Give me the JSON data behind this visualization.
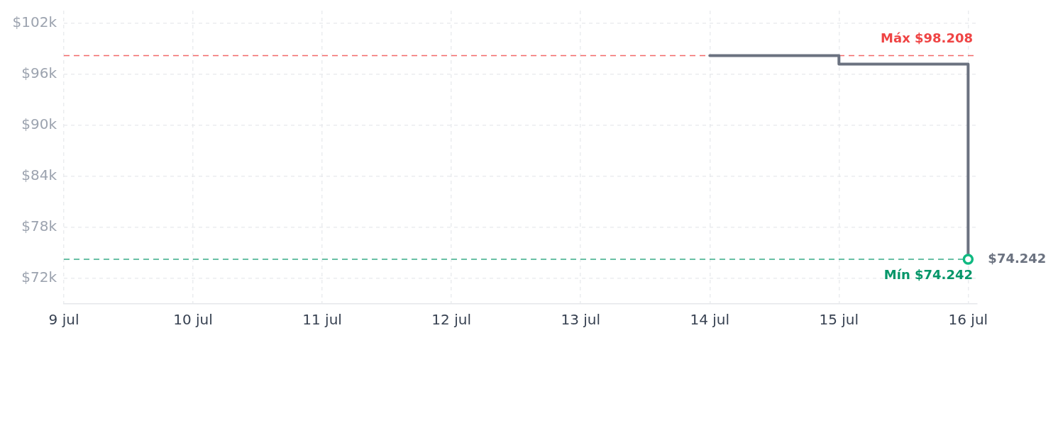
{
  "chart_data": {
    "type": "step",
    "x": [
      "--07-14",
      "--07-15",
      "--07-16"
    ],
    "series": [
      {
        "color": "#6b7280",
        "values": [
          98208,
          97200,
          74242
        ]
      },
      {
        "type": "scatter",
        "x": [
          "--07-16"
        ],
        "color": "#10b981",
        "marker": "circle",
        "values": [
          74242
        ]
      }
    ],
    "xlim": [
      "--07-09",
      "--07-16T01:40"
    ],
    "xticks": [
      {
        "value": "--07-09",
        "label": "9 jul"
      },
      {
        "value": "--07-10",
        "label": "10 jul"
      },
      {
        "value": "--07-11",
        "label": "11 jul"
      },
      {
        "value": "--07-12",
        "label": "12 jul"
      },
      {
        "value": "--07-13",
        "label": "13 jul"
      },
      {
        "value": "--07-14",
        "label": "14 jul"
      },
      {
        "value": "--07-15",
        "label": "15 jul"
      },
      {
        "value": "--07-16",
        "label": "16 jul"
      }
    ],
    "ylim": [
      69000,
      103500
    ],
    "yticks": [
      {
        "value": 72000,
        "label": "$72k"
      },
      {
        "value": 78000,
        "label": "$78k"
      },
      {
        "value": 84000,
        "label": "$84k"
      },
      {
        "value": 90000,
        "label": "$90k"
      },
      {
        "value": 96000,
        "label": "$96k"
      },
      {
        "value": 102000,
        "label": "$102k"
      }
    ],
    "ref_lines": [
      {
        "axis": "y",
        "value": 98208,
        "label": "Máx $98.208",
        "color": "#ef4444",
        "line_style": "dashed"
      },
      {
        "axis": "y",
        "value": 74242,
        "label": "Mín $74.242",
        "color": "#059669",
        "line_style": "dashed"
      }
    ],
    "annotations": [
      {
        "text": "$74.242",
        "x": "--07-16",
        "y": 74242
      }
    ],
    "grid": true,
    "marker": "none"
  }
}
